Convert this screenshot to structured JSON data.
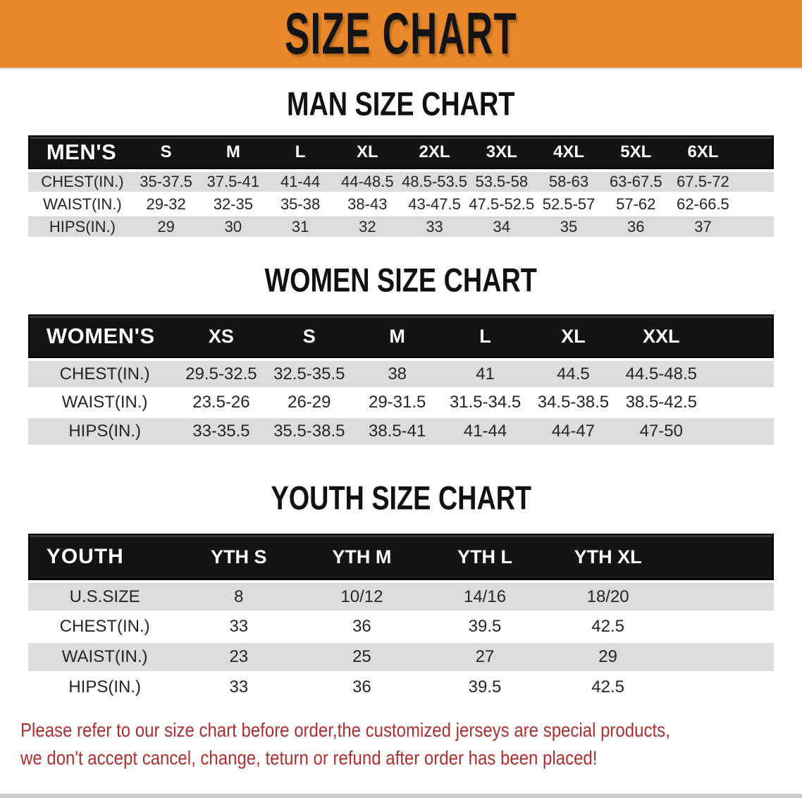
{
  "banner": {
    "title": "SIZE CHART"
  },
  "colors": {
    "banner_bg": "#E8882B",
    "header_bar_bg": "#141414",
    "stripe_gray": "#DCDCDC",
    "stripe_white": "#FDFDFD",
    "note_red": "#AE2F2F"
  },
  "sections": [
    {
      "id": "men",
      "heading": "MAN SIZE CHART",
      "table": {
        "corner": "MEN'S",
        "columns": [
          "S",
          "M",
          "L",
          "XL",
          "2XL",
          "3XL",
          "4XL",
          "5XL",
          "6XL"
        ],
        "rows": [
          {
            "label": "CHEST(IN.)",
            "values": [
              "35-37.5",
              "37.5-41",
              "41-44",
              "44-48.5",
              "48.5-53.5",
              "53.5-58",
              "58-63",
              "63-67.5",
              "67.5-72"
            ]
          },
          {
            "label": "WAIST(IN.)",
            "values": [
              "29-32",
              "32-35",
              "35-38",
              "38-43",
              "43-47.5",
              "47.5-52.5",
              "52.5-57",
              "57-62",
              "62-66.5"
            ]
          },
          {
            "label": "HIPS(IN.)",
            "values": [
              "29",
              "30",
              "31",
              "32",
              "33",
              "34",
              "35",
              "36",
              "37"
            ]
          }
        ]
      }
    },
    {
      "id": "women",
      "heading": "WOMEN SIZE CHART",
      "table": {
        "corner": "WOMEN'S",
        "columns": [
          "XS",
          "S",
          "M",
          "L",
          "XL",
          "XXL"
        ],
        "rows": [
          {
            "label": "CHEST(IN.)",
            "values": [
              "29.5-32.5",
              "32.5-35.5",
              "38",
              "41",
              "44.5",
              "44.5-48.5"
            ]
          },
          {
            "label": "WAIST(IN.)",
            "values": [
              "23.5-26",
              "26-29",
              "29-31.5",
              "31.5-34.5",
              "34.5-38.5",
              "38.5-42.5"
            ]
          },
          {
            "label": "HIPS(IN.)",
            "values": [
              "33-35.5",
              "35.5-38.5",
              "38.5-41",
              "41-44",
              "44-47",
              "47-50"
            ]
          }
        ]
      }
    },
    {
      "id": "youth",
      "heading": "YOUTH SIZE CHART",
      "table": {
        "corner": "YOUTH",
        "columns": [
          "YTH S",
          "YTH M",
          "YTH L",
          "YTH XL"
        ],
        "rows": [
          {
            "label": "U.S.SIZE",
            "values": [
              "8",
              "10/12",
              "14/16",
              "18/20"
            ]
          },
          {
            "label": "CHEST(IN.)",
            "values": [
              "33",
              "36",
              "39.5",
              "42.5"
            ]
          },
          {
            "label": "WAIST(IN.)",
            "values": [
              "23",
              "25",
              "27",
              "29"
            ]
          },
          {
            "label": "HIPS(IN.)",
            "values": [
              "33",
              "36",
              "39.5",
              "42.5"
            ]
          }
        ]
      }
    }
  ],
  "footer": {
    "line1": "Please refer to our size chart before order,the customized jerseys are special products,",
    "line2": "we don't accept cancel, change, teturn or refund after order has been placed!"
  }
}
